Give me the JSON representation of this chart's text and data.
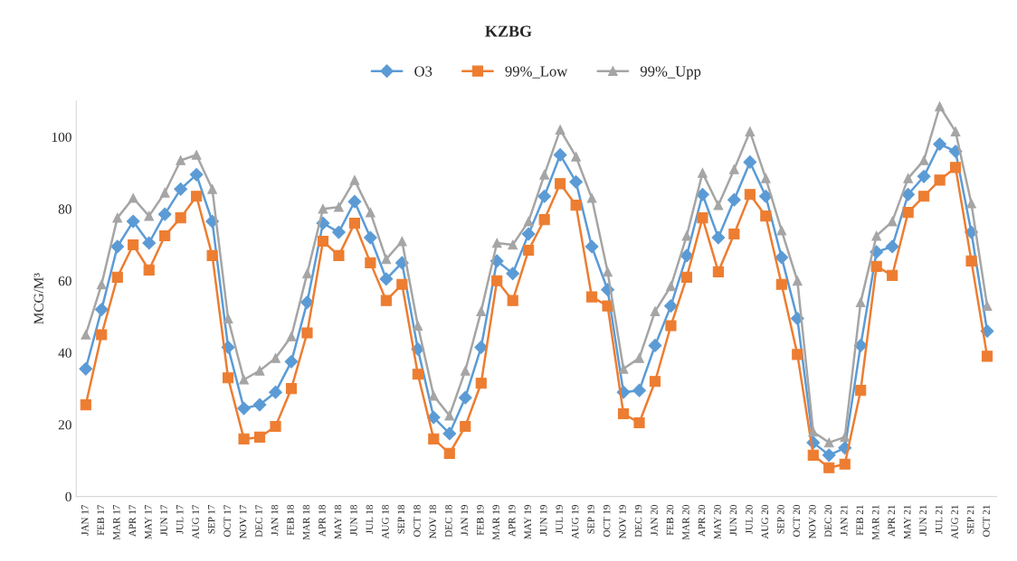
{
  "chart_data": {
    "type": "line",
    "title": "KZBG",
    "ylabel": "MCG/M³",
    "categories": [
      "JAN 17",
      "FEB 17",
      "MAR 17",
      "APR 17",
      "MAY 17",
      "JUN 17",
      "JUL 17",
      "AUG 17",
      "SEP 17",
      "OCT 17",
      "NOV 17",
      "DEC 17",
      "JAN 18",
      "FEB 18",
      "MAR 18",
      "APR 18",
      "MAY 18",
      "JUN 18",
      "JUL 18",
      "AUG 18",
      "SEP 18",
      "OCT 18",
      "NOV 18",
      "DEC 18",
      "JAN 19",
      "FEB 19",
      "MAR 19",
      "APR 19",
      "MAY 19",
      "JUN 19",
      "JUL 19",
      "AUG 19",
      "SEP 19",
      "OCT 19",
      "NOV 19",
      "DEC 19",
      "JAN 20",
      "FEB 20",
      "MAR 20",
      "APR 20",
      "MAY 20",
      "JUN 20",
      "JUL 20",
      "AUG 20",
      "SEP 20",
      "OCT 20",
      "NOV 20",
      "DEC 20",
      "JAN 21",
      "FEB 21",
      "MAR 21",
      "APR 21",
      "MAY 21",
      "JUN 21",
      "JUL 21",
      "AUG 21",
      "SEP 21",
      "OCT 21"
    ],
    "series": [
      {
        "name": "O3",
        "color": "#5b9bd5",
        "marker": "diamond",
        "values": [
          35.5,
          52,
          69.5,
          76.5,
          70.5,
          78.5,
          85.5,
          89.5,
          76.5,
          41.5,
          24.5,
          25.5,
          29,
          37.5,
          54,
          76,
          73.5,
          82,
          72,
          60.5,
          65,
          41,
          22,
          17.5,
          27.5,
          41.5,
          65.5,
          62,
          73,
          83.5,
          95,
          87.5,
          69.5,
          57.5,
          29,
          29.5,
          42,
          53,
          67,
          84,
          72,
          82.5,
          93,
          83.5,
          66.5,
          49.5,
          15,
          11.5,
          13.5,
          42,
          68,
          69.5,
          84,
          89,
          98,
          96,
          73.5,
          46
        ]
      },
      {
        "name": "99%_Low",
        "color": "#ed7d31",
        "marker": "square",
        "values": [
          25.5,
          45,
          61,
          70,
          63,
          72.5,
          77.5,
          83.5,
          67,
          33,
          16,
          16.5,
          19.5,
          30,
          45.5,
          71,
          67,
          76,
          65,
          54.5,
          59,
          34,
          16,
          12,
          19.5,
          31.5,
          60,
          54.5,
          68.5,
          77,
          87,
          81,
          55.5,
          53,
          23,
          20.5,
          32,
          47.5,
          61,
          77.5,
          62.5,
          73,
          84,
          78,
          59,
          39.5,
          11.5,
          8,
          9,
          29.5,
          64,
          61.5,
          79,
          83.5,
          88,
          91.5,
          65.5,
          39
        ]
      },
      {
        "name": "99%_Upp",
        "color": "#a5a5a5",
        "marker": "triangle",
        "values": [
          45,
          59,
          77.5,
          83,
          78,
          84.5,
          93.5,
          95,
          85.5,
          49.5,
          32.5,
          35,
          38.5,
          44.5,
          62,
          80,
          80.5,
          88,
          79,
          66,
          71,
          47.5,
          28,
          22.5,
          35,
          51.5,
          70.5,
          70,
          76.5,
          89.5,
          102,
          94.5,
          83,
          62.5,
          35.5,
          38.5,
          51.5,
          58.5,
          72.5,
          90,
          81,
          91,
          101.5,
          88.5,
          74,
          60,
          18,
          15,
          16.5,
          54,
          72.5,
          76.5,
          88.5,
          93.5,
          108.5,
          101.5,
          81.5,
          53
        ]
      }
    ],
    "ylim": [
      0,
      110
    ],
    "yticks": [
      0,
      20,
      40,
      60,
      80,
      100
    ],
    "grid": false,
    "legend": "top",
    "line_style": "solid"
  }
}
